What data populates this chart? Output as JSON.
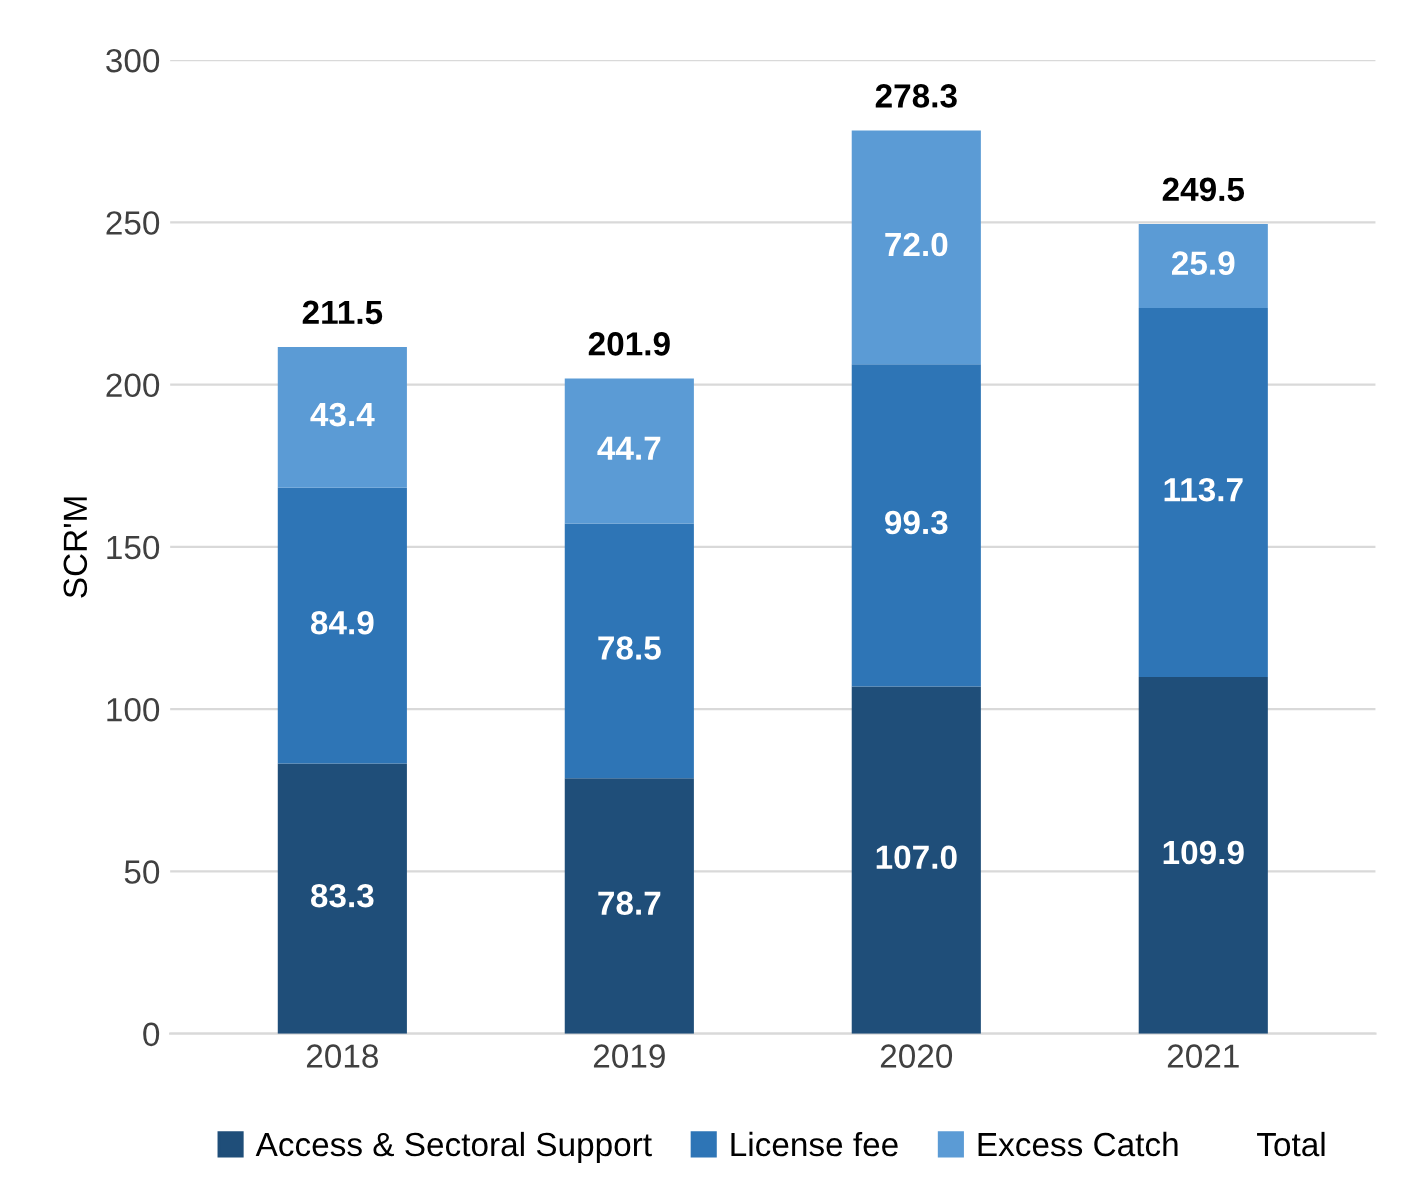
{
  "chart_data": {
    "type": "bar",
    "stacked": true,
    "ylabel": "SCR'M",
    "categories": [
      "2018",
      "2019",
      "2020",
      "2021"
    ],
    "series": [
      {
        "name": "Access & Sectoral Support",
        "color": "#1f4e79",
        "values": [
          83.3,
          78.7,
          107.0,
          109.9
        ],
        "value_labels": [
          "83.3",
          "78.7",
          "107.0",
          "109.9"
        ]
      },
      {
        "name": "License fee",
        "color": "#2e75b6",
        "values": [
          84.9,
          78.5,
          99.3,
          113.7
        ],
        "value_labels": [
          "84.9",
          "78.5",
          "99.3",
          "113.7"
        ]
      },
      {
        "name": "Excess Catch",
        "color": "#5b9bd5",
        "values": [
          43.4,
          44.7,
          72.0,
          25.9
        ],
        "value_labels": [
          "43.4",
          "44.7",
          "72.0",
          "25.9"
        ]
      }
    ],
    "totals": [
      "211.5",
      "201.9",
      "278.3",
      "249.5"
    ],
    "annotations": [
      "Total"
    ],
    "ylim": [
      0,
      300
    ],
    "yticks": [
      0,
      50,
      100,
      150,
      200,
      250,
      300
    ],
    "grid": "y",
    "legend": "bottom"
  }
}
